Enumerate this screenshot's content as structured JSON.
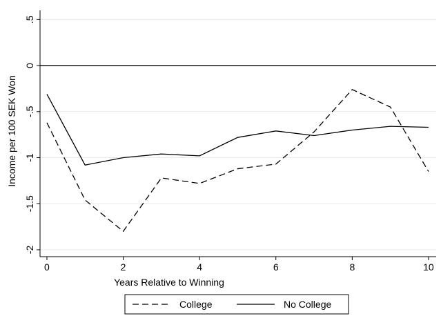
{
  "chart_data": {
    "type": "line",
    "x_label": "Years Relative to Winning",
    "y_label": "Income per 100 SEK Won",
    "x": [
      0,
      1,
      2,
      3,
      4,
      5,
      6,
      7,
      8,
      9,
      10
    ],
    "series": [
      {
        "name": "College",
        "color": "#000000",
        "dash": true,
        "values": [
          -0.62,
          -1.46,
          -1.8,
          -1.22,
          -1.28,
          -1.12,
          -1.07,
          -0.72,
          -0.26,
          -0.45,
          -1.15
        ]
      },
      {
        "name": "No College",
        "color": "#000000",
        "dash": false,
        "values": [
          -0.31,
          -1.08,
          -1.0,
          -0.96,
          -0.98,
          -0.78,
          -0.71,
          -0.76,
          -0.7,
          -0.66,
          -0.67
        ]
      }
    ],
    "xlim": [
      -0.18,
      10.2
    ],
    "ylim": [
      -2.075,
      0.6
    ],
    "xticks": [
      0,
      2,
      4,
      6,
      8,
      10
    ],
    "yticks": [
      {
        "value": 0.5,
        "label": ".5"
      },
      0,
      {
        "value": -0.5,
        "label": "-.5"
      },
      -1,
      {
        "value": -1.5,
        "label": "-1.5"
      },
      -2
    ],
    "hline": 0,
    "grid": true
  }
}
